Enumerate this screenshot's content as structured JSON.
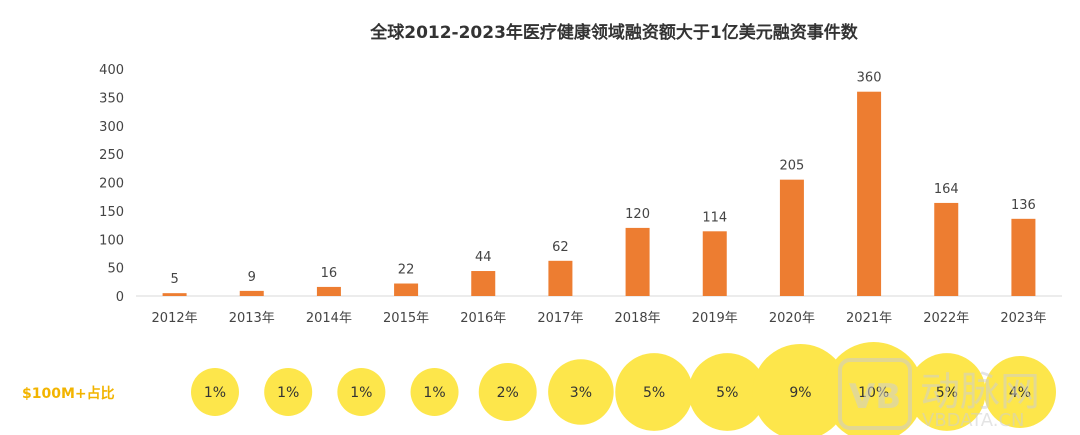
{
  "chart_data": {
    "type": "bar",
    "title": "全球2012-2023年医疗健康领域融资额大于1亿美元融资事件数",
    "categories": [
      "2012年",
      "2013年",
      "2014年",
      "2015年",
      "2016年",
      "2017年",
      "2018年",
      "2019年",
      "2020年",
      "2021年",
      "2022年",
      "2023年"
    ],
    "values": [
      5,
      9,
      16,
      22,
      44,
      62,
      120,
      114,
      205,
      360,
      164,
      136
    ],
    "ylim": [
      0,
      400
    ],
    "yticks": [
      0,
      50,
      100,
      150,
      200,
      250,
      300,
      350,
      400
    ],
    "bar_color": "#ed7d31",
    "grid": false,
    "share": {
      "label": "$100M+占比",
      "values": [
        "1%",
        "1%",
        "1%",
        "1%",
        "2%",
        "3%",
        "5%",
        "5%",
        "9%",
        "10%",
        "5%",
        "4%"
      ],
      "percent": [
        1,
        1,
        1,
        1,
        2,
        3,
        5,
        5,
        9,
        10,
        5,
        4
      ],
      "color": "#fde64b",
      "label_color": "#f2b400"
    }
  },
  "watermark": {
    "logo_text": "VB",
    "cn_text": "动脉网",
    "url_text": "VBDATA.CN"
  }
}
